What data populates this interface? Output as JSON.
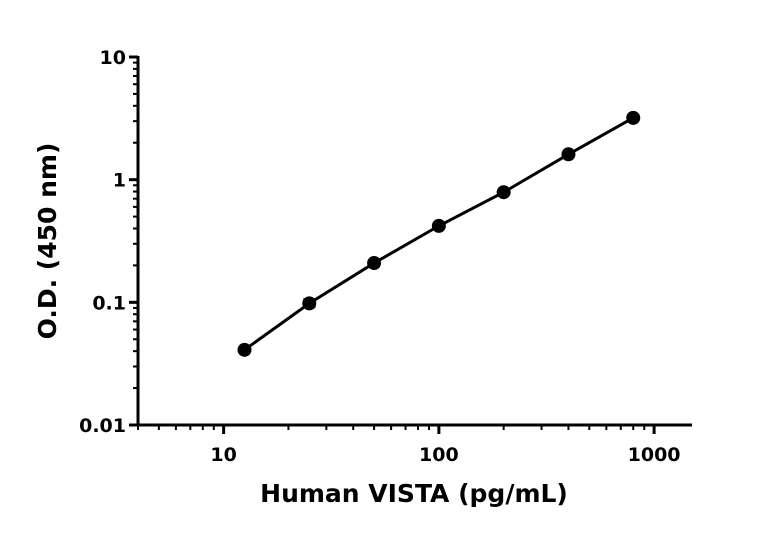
{
  "chart_data": {
    "type": "line",
    "title": "",
    "xlabel": "Human VISTA (pg/mL)",
    "ylabel": "O.D. (450 nm)",
    "xscale": "log",
    "yscale": "log",
    "xlim": [
      4,
      1500
    ],
    "ylim": [
      0.01,
      10
    ],
    "xticks": [
      10,
      100,
      1000
    ],
    "xtick_labels": [
      "10",
      "100",
      "1000"
    ],
    "yticks": [
      0.01,
      0.1,
      1,
      10
    ],
    "ytick_labels": [
      "0.01",
      "0.1",
      "1",
      "10"
    ],
    "grid": false,
    "legend": "none",
    "color": "#000000",
    "series": [
      {
        "x": [
          12.5,
          25,
          50,
          100,
          200,
          400,
          800
        ],
        "y": [
          0.041,
          0.098,
          0.209,
          0.42,
          0.79,
          1.61,
          3.19
        ],
        "error_low": [
          null,
          0.092,
          null,
          null,
          null,
          null,
          null
        ],
        "error_high": [
          null,
          0.105,
          null,
          null,
          null,
          null,
          null
        ]
      }
    ]
  }
}
